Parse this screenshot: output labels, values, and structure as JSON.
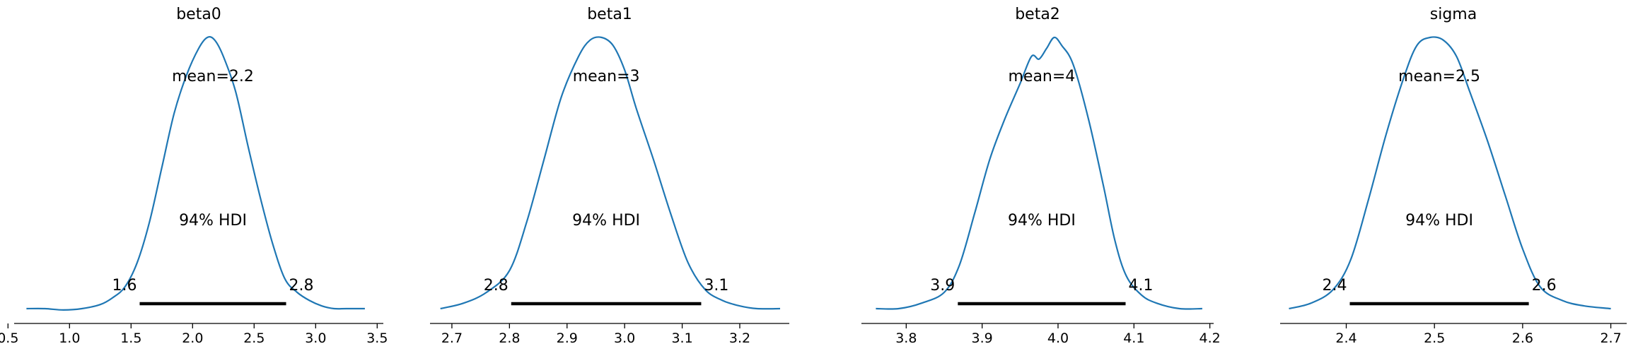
{
  "chart_data": [
    {
      "type": "area",
      "title": "beta0",
      "mean_label": "mean=2.2",
      "hdi_label": "94% HDI",
      "hdi": {
        "low": 1.57,
        "high": 2.76,
        "low_label": "1.6",
        "high_label": "2.8"
      },
      "xlim": [
        0.55,
        3.55
      ],
      "xticks": [
        0.5,
        1.0,
        1.5,
        2.0,
        2.5,
        3.0,
        3.5
      ],
      "xtick_labels": [
        "0.5",
        "1.0",
        "1.5",
        "2.0",
        "2.5",
        "3.0",
        "3.5"
      ],
      "x": [
        0.65,
        0.8,
        0.95,
        1.1,
        1.25,
        1.35,
        1.45,
        1.55,
        1.65,
        1.75,
        1.85,
        1.95,
        2.05,
        2.12,
        2.18,
        2.25,
        2.35,
        2.45,
        2.55,
        2.65,
        2.75,
        2.85,
        2.95,
        3.05,
        3.15,
        3.25,
        3.4
      ],
      "density": [
        0.0,
        0.0,
        -0.005,
        0.0,
        0.015,
        0.04,
        0.08,
        0.17,
        0.32,
        0.52,
        0.72,
        0.86,
        0.96,
        1.0,
        0.99,
        0.93,
        0.8,
        0.6,
        0.41,
        0.24,
        0.11,
        0.06,
        0.03,
        0.01,
        0.0,
        0.0,
        0.0
      ],
      "color": "#1f77b4"
    },
    {
      "type": "area",
      "title": "beta1",
      "mean_label": "mean=3",
      "hdi_label": "94% HDI",
      "hdi": {
        "low": 2.803,
        "high": 3.133,
        "low_label": "2.8",
        "high_label": "3.1"
      },
      "xlim": [
        2.662,
        3.286
      ],
      "xticks": [
        2.7,
        2.8,
        2.9,
        3.0,
        3.1,
        3.2
      ],
      "xtick_labels": [
        "2.7",
        "2.8",
        "2.9",
        "3.0",
        "3.1",
        "3.2"
      ],
      "x": [
        2.68,
        2.72,
        2.76,
        2.8,
        2.83,
        2.86,
        2.89,
        2.92,
        2.94,
        2.96,
        2.98,
        3.0,
        3.02,
        3.05,
        3.08,
        3.11,
        3.14,
        3.17,
        3.2,
        3.23,
        3.27
      ],
      "density": [
        0.0,
        0.02,
        0.06,
        0.14,
        0.32,
        0.55,
        0.78,
        0.93,
        0.99,
        1.0,
        0.97,
        0.88,
        0.74,
        0.55,
        0.35,
        0.17,
        0.07,
        0.03,
        0.01,
        0.0,
        0.0
      ],
      "color": "#1f77b4"
    },
    {
      "type": "area",
      "title": "beta2",
      "mean_label": "mean=4",
      "hdi_label": "94% HDI",
      "hdi": {
        "low": 3.868,
        "high": 4.089,
        "low_label": "3.9",
        "high_label": "4.1"
      },
      "xlim": [
        3.741,
        4.205
      ],
      "xticks": [
        3.8,
        3.9,
        4.0,
        4.1,
        4.2
      ],
      "xtick_labels": [
        "3.8",
        "3.9",
        "4.0",
        "4.1",
        "4.2"
      ],
      "x": [
        3.76,
        3.79,
        3.82,
        3.85,
        3.87,
        3.89,
        3.91,
        3.93,
        3.95,
        3.965,
        3.975,
        3.985,
        3.995,
        4.005,
        4.02,
        4.04,
        4.06,
        4.075,
        4.09,
        4.11,
        4.13,
        4.16,
        4.19
      ],
      "density": [
        0.0,
        0.0,
        0.02,
        0.06,
        0.16,
        0.35,
        0.55,
        0.7,
        0.83,
        0.93,
        0.92,
        0.96,
        1.0,
        0.97,
        0.9,
        0.7,
        0.45,
        0.25,
        0.12,
        0.05,
        0.02,
        0.0,
        0.0
      ],
      "color": "#1f77b4"
    },
    {
      "type": "area",
      "title": "sigma",
      "mean_label": "mean=2.5",
      "hdi_label": "94% HDI",
      "hdi": {
        "low": 2.404,
        "high": 2.607,
        "low_label": "2.4",
        "high_label": "2.6"
      },
      "xlim": [
        2.325,
        2.718
      ],
      "xticks": [
        2.4,
        2.5,
        2.6,
        2.7
      ],
      "xtick_labels": [
        "2.4",
        "2.5",
        "2.6",
        "2.7"
      ],
      "x": [
        2.335,
        2.36,
        2.385,
        2.405,
        2.425,
        2.445,
        2.465,
        2.48,
        2.495,
        2.51,
        2.525,
        2.54,
        2.56,
        2.58,
        2.6,
        2.62,
        2.645,
        2.67,
        2.7
      ],
      "density": [
        0.0,
        0.02,
        0.07,
        0.18,
        0.4,
        0.64,
        0.85,
        0.97,
        1.0,
        0.99,
        0.93,
        0.8,
        0.62,
        0.42,
        0.22,
        0.08,
        0.03,
        0.01,
        0.0
      ],
      "color": "#1f77b4"
    }
  ]
}
